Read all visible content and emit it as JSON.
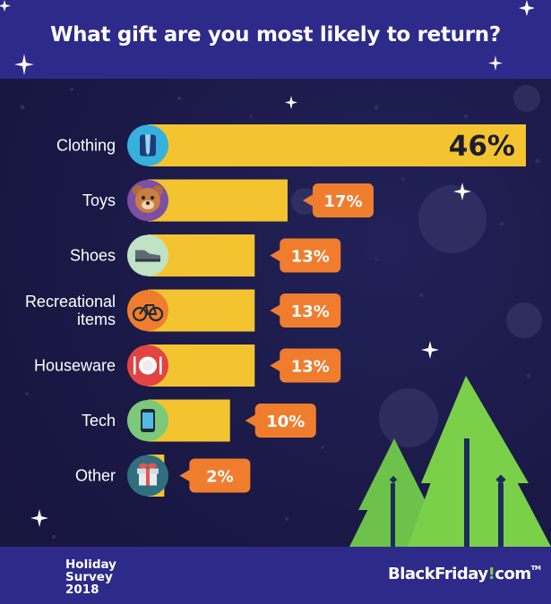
{
  "title": "What gift are you most likely to return?",
  "chart_data": {
    "type": "bar",
    "orientation": "horizontal",
    "categories": [
      "Clothing",
      "Toys",
      "Shoes",
      "Recreational items",
      "Houseware",
      "Tech",
      "Other"
    ],
    "values": [
      46,
      17,
      13,
      13,
      13,
      10,
      2
    ],
    "value_labels": [
      "46%",
      "17%",
      "13%",
      "13%",
      "13%",
      "10%",
      "2%"
    ],
    "icons": [
      "shirt-tie-icon",
      "teddy-bear-icon",
      "shoe-icon",
      "bicycle-icon",
      "plate-cutlery-icon",
      "smartphone-icon",
      "gift-box-icon"
    ],
    "icon_colors": [
      "#36b1dd",
      "#7b4fa3",
      "#bfe3c4",
      "#f07d2e",
      "#e34343",
      "#7cc97a",
      "#2f6f80"
    ],
    "bar_color": "#f4c430",
    "callout_color": "#f07d2e"
  },
  "footer": {
    "survey_line1": "Holiday",
    "survey_line2": "Survey",
    "survey_line3": "2018",
    "brand_name": "BlackFriday",
    "brand_mark": "!",
    "brand_tld": "com",
    "brand_tm": "TM"
  }
}
